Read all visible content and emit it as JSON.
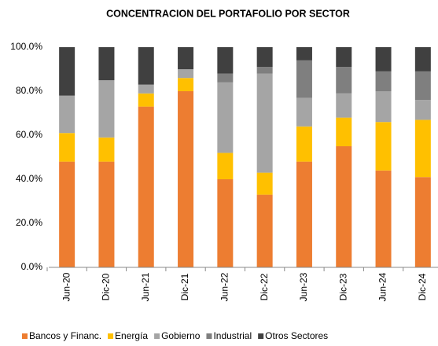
{
  "chart_data": {
    "type": "stacked_bar",
    "title": "CONCENTRACION DEL PORTAFOLIO POR SECTOR",
    "categories": [
      "Jun-20",
      "Dic-20",
      "Jun-21",
      "Dic-21",
      "Jun-22",
      "Dic-22",
      "Jun-23",
      "Dic-23",
      "Jun-24",
      "Dic-24"
    ],
    "series": [
      {
        "name": "Bancos y Financ.",
        "color": "#ED7D31",
        "values": [
          48,
          48,
          73,
          80,
          40,
          33,
          48,
          55,
          44,
          41
        ]
      },
      {
        "name": "Energía",
        "color": "#FFC000",
        "values": [
          13,
          11,
          6,
          6,
          12,
          10,
          16,
          13,
          22,
          26
        ]
      },
      {
        "name": "Gobierno",
        "color": "#A5A5A5",
        "values": [
          17,
          26,
          4,
          4,
          32,
          45,
          13,
          11,
          14,
          9
        ]
      },
      {
        "name": "Industrial",
        "color": "#7F7F7F",
        "values": [
          0,
          0,
          0,
          0,
          4,
          3,
          17,
          12,
          9,
          13
        ]
      },
      {
        "name": "Otros Sectores",
        "color": "#404040",
        "values": [
          22,
          15,
          17,
          10,
          12,
          9,
          6,
          9,
          11,
          11
        ]
      }
    ],
    "ylim": [
      0,
      100
    ],
    "yticks": [
      {
        "value": 0,
        "label": "0.0%"
      },
      {
        "value": 20,
        "label": "20.0%"
      },
      {
        "value": 40,
        "label": "40.0%"
      },
      {
        "value": 60,
        "label": "60.0%"
      },
      {
        "value": 80,
        "label": "80.0%"
      },
      {
        "value": 100,
        "label": "100.0%"
      }
    ],
    "grid": false
  }
}
